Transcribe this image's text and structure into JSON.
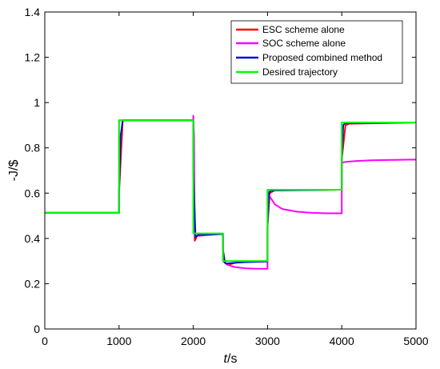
{
  "chart_data": {
    "type": "line",
    "xlabel_italic": "t",
    "xlabel_unit": "/s",
    "ylabel": "-J/$",
    "xlim": [
      0,
      5000
    ],
    "ylim": [
      0,
      1.4
    ],
    "xticks": [
      "0",
      "1000",
      "2000",
      "3000",
      "4000",
      "5000"
    ],
    "yticks": [
      "0",
      "0.2",
      "0.4",
      "0.6",
      "0.8",
      "1",
      "1.2",
      "1.4"
    ],
    "grid": false,
    "legend_position": "top-right",
    "series": [
      {
        "name": "ESC scheme alone",
        "color": "#ff0000",
        "x": [
          0,
          1000,
          1000,
          1050,
          2000,
          2000,
          2020,
          2050,
          2100,
          2400,
          2400,
          2430,
          2480,
          2600,
          3000,
          3000,
          3030,
          3100,
          4000,
          4000,
          4050,
          4100,
          5000
        ],
        "y": [
          0.513,
          0.513,
          0.6,
          0.922,
          0.922,
          0.7,
          0.39,
          0.41,
          0.42,
          0.42,
          0.35,
          0.29,
          0.285,
          0.295,
          0.3,
          0.45,
          0.6,
          0.613,
          0.615,
          0.75,
          0.9,
          0.907,
          0.912
        ]
      },
      {
        "name": "SOC scheme alone",
        "color": "#ff00ff",
        "x": [
          0,
          1000,
          1000,
          2000,
          2000,
          2010,
          2020,
          2400,
          2400,
          2450,
          2550,
          2700,
          2850,
          3000,
          3000,
          3030,
          3100,
          3200,
          3400,
          3600,
          3800,
          4000,
          4000,
          4050,
          4200,
          4400,
          4700,
          5000
        ],
        "y": [
          0.513,
          0.513,
          0.922,
          0.922,
          0.942,
          0.85,
          0.41,
          0.42,
          0.3,
          0.285,
          0.274,
          0.268,
          0.266,
          0.266,
          0.613,
          0.585,
          0.55,
          0.53,
          0.518,
          0.513,
          0.511,
          0.511,
          0.735,
          0.738,
          0.742,
          0.745,
          0.747,
          0.748
        ]
      },
      {
        "name": "Proposed combined method",
        "color": "#0010d0",
        "x": [
          0,
          1000,
          1000,
          1020,
          1050,
          2000,
          2000,
          2030,
          2060,
          2400,
          2400,
          2420,
          2450,
          2550,
          2700,
          3000,
          3000,
          3020,
          3040,
          4000,
          4000,
          4020,
          4040,
          5000
        ],
        "y": [
          0.513,
          0.513,
          0.6,
          0.85,
          0.922,
          0.922,
          0.7,
          0.405,
          0.415,
          0.42,
          0.35,
          0.295,
          0.289,
          0.292,
          0.295,
          0.298,
          0.45,
          0.6,
          0.612,
          0.615,
          0.75,
          0.9,
          0.908,
          0.912
        ]
      },
      {
        "name": "Desired trajectory",
        "color": "#00ff00",
        "x": [
          0,
          1000,
          1000,
          2000,
          2000,
          2400,
          2400,
          3000,
          3000,
          4000,
          4000,
          5000
        ],
        "y": [
          0.513,
          0.513,
          0.922,
          0.922,
          0.422,
          0.422,
          0.3,
          0.3,
          0.615,
          0.615,
          0.912,
          0.912
        ]
      }
    ]
  }
}
